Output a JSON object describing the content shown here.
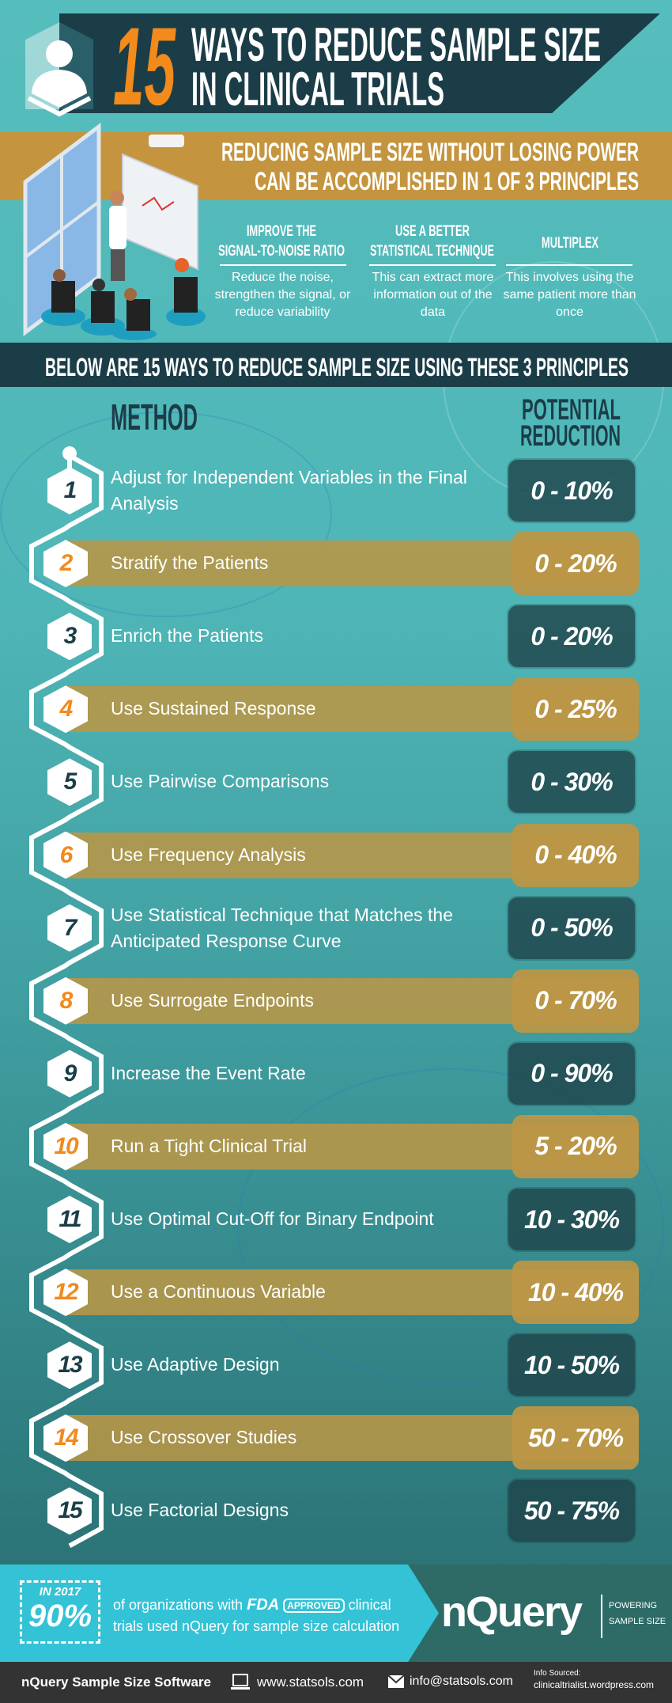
{
  "header": {
    "number": "15",
    "title_line1": "WAYS TO REDUCE SAMPLE SIZE",
    "title_line2": "IN CLINICAL TRIALS"
  },
  "intro": {
    "line1": "REDUCING SAMPLE SIZE WITHOUT LOSING POWER",
    "line2": "CAN BE ACCOMPLISHED IN 1 OF 3 PRINCIPLES"
  },
  "principles": [
    {
      "title1": "IMPROVE THE",
      "title2": "SIGNAL-TO-NOISE RATIO",
      "body": "Reduce the noise, strengthen the signal, or reduce variability"
    },
    {
      "title1": "USE A BETTER",
      "title2": "STATISTICAL TECHNIQUE",
      "body": "This can extract more information out of the data"
    },
    {
      "title1": "MULTIPLEX",
      "title2": "",
      "body": "This involves using the same patient more than once"
    }
  ],
  "banner": "BELOW ARE 15 WAYS TO REDUCE SAMPLE SIZE USING THESE 3 PRINCIPLES",
  "table": {
    "method_header": "METHOD",
    "reduction_header1": "POTENTIAL",
    "reduction_header2": "REDUCTION",
    "rows": [
      {
        "num": "1",
        "method": "Adjust for Independent Variables in the Final Analysis",
        "reduction": "0 - 10%"
      },
      {
        "num": "2",
        "method": "Stratify the Patients",
        "reduction": "0 - 20%"
      },
      {
        "num": "3",
        "method": "Enrich the Patients",
        "reduction": "0 - 20%"
      },
      {
        "num": "4",
        "method": "Use Sustained Response",
        "reduction": "0 - 25%"
      },
      {
        "num": "5",
        "method": "Use Pairwise Comparisons",
        "reduction": "0 - 30%"
      },
      {
        "num": "6",
        "method": "Use Frequency Analysis",
        "reduction": "0 - 40%"
      },
      {
        "num": "7",
        "method": "Use Statistical Technique that Matches the Anticipated Response Curve",
        "reduction": "0 - 50%"
      },
      {
        "num": "8",
        "method": "Use Surrogate Endpoints",
        "reduction": "0 - 70%"
      },
      {
        "num": "9",
        "method": "Increase the Event Rate",
        "reduction": "0 - 90%"
      },
      {
        "num": "10",
        "method": "Run a Tight Clinical Trial",
        "reduction": "5 - 20%"
      },
      {
        "num": "11",
        "method": "Use Optimal Cut-Off for Binary Endpoint",
        "reduction": "10 - 30%"
      },
      {
        "num": "12",
        "method": "Use a Continuous Variable",
        "reduction": "10 - 40%"
      },
      {
        "num": "13",
        "method": "Use Adaptive Design",
        "reduction": "10 - 50%"
      },
      {
        "num": "14",
        "method": "Use Crossover Studies",
        "reduction": "50 - 70%"
      },
      {
        "num": "15",
        "method": "Use Factorial Designs",
        "reduction": "50 - 75%"
      }
    ]
  },
  "promo": {
    "year": "IN 2017",
    "percent": "90%",
    "text1_a": "of organizations with",
    "fda": "FDA",
    "approved": "APPROVED",
    "text1_b": "clinical",
    "text2": "trials used nQuery for sample size calculation",
    "logo": "nQuery",
    "tagline1": "POWERING",
    "tagline2": "SAMPLE SIZE"
  },
  "footer": {
    "brand": "nQuery Sample Size Software",
    "website": "www.statsols.com",
    "email": "info@statsols.com",
    "source_label": "Info Sourced:",
    "source": "clinicaltrialist.wordpress.com"
  },
  "colors": {
    "dark": "#1b3d48",
    "orange": "#f28a1c",
    "gold": "#c4953e",
    "teal": "#56bdbd",
    "cyan": "#34c3d6"
  },
  "icons": {
    "avatar": "person-silhouette-icon",
    "website": "laptop-icon",
    "email": "envelope-icon"
  }
}
